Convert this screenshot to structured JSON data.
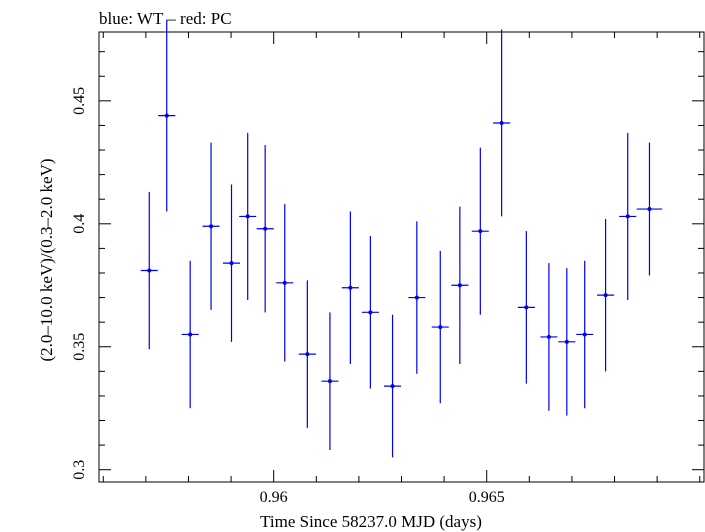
{
  "chart_data": {
    "type": "scatter",
    "title": "blue: WT – red: PC",
    "xlabel": "Time Since 58237.0 MJD (days)",
    "ylabel": "(2.0–10.0 keV)/(0.3–2.0 keV)",
    "xlim": [
      0.9559,
      0.9701
    ],
    "ylim": [
      0.295,
      0.478
    ],
    "x_ticks": [
      {
        "value": 0.96,
        "label": "0.96"
      },
      {
        "value": 0.965,
        "label": "0.965"
      }
    ],
    "y_ticks": [
      {
        "value": 0.3,
        "label": "0.3"
      },
      {
        "value": 0.35,
        "label": "0.35"
      },
      {
        "value": 0.4,
        "label": "0.4"
      },
      {
        "value": 0.45,
        "label": "0.45"
      }
    ],
    "grid": false,
    "series": [
      {
        "color": "#0000ee",
        "points": [
          {
            "x": 0.95708,
            "xerr": 0.0002,
            "y": 0.381,
            "yerr": 0.032
          },
          {
            "x": 0.95749,
            "xerr": 0.0002,
            "y": 0.444,
            "yerr": 0.039
          },
          {
            "x": 0.95804,
            "xerr": 0.0002,
            "y": 0.355,
            "yerr": 0.03
          },
          {
            "x": 0.95853,
            "xerr": 0.0002,
            "y": 0.399,
            "yerr": 0.034
          },
          {
            "x": 0.95901,
            "xerr": 0.0002,
            "y": 0.384,
            "yerr": 0.032
          },
          {
            "x": 0.95939,
            "xerr": 0.0002,
            "y": 0.403,
            "yerr": 0.034
          },
          {
            "x": 0.9598,
            "xerr": 0.0002,
            "y": 0.398,
            "yerr": 0.034
          },
          {
            "x": 0.96026,
            "xerr": 0.0002,
            "y": 0.376,
            "yerr": 0.032
          },
          {
            "x": 0.96079,
            "xerr": 0.0002,
            "y": 0.347,
            "yerr": 0.03
          },
          {
            "x": 0.96132,
            "xerr": 0.0002,
            "y": 0.336,
            "yerr": 0.028
          },
          {
            "x": 0.9618,
            "xerr": 0.0002,
            "y": 0.374,
            "yerr": 0.031
          },
          {
            "x": 0.96227,
            "xerr": 0.0002,
            "y": 0.364,
            "yerr": 0.031
          },
          {
            "x": 0.96279,
            "xerr": 0.0002,
            "y": 0.334,
            "yerr": 0.029
          },
          {
            "x": 0.96336,
            "xerr": 0.0002,
            "y": 0.37,
            "yerr": 0.031
          },
          {
            "x": 0.96391,
            "xerr": 0.0002,
            "y": 0.358,
            "yerr": 0.031
          },
          {
            "x": 0.96437,
            "xerr": 0.0002,
            "y": 0.375,
            "yerr": 0.032
          },
          {
            "x": 0.96485,
            "xerr": 0.0002,
            "y": 0.397,
            "yerr": 0.034
          },
          {
            "x": 0.96535,
            "xerr": 0.0002,
            "y": 0.441,
            "yerr": 0.038
          },
          {
            "x": 0.96593,
            "xerr": 0.0002,
            "y": 0.366,
            "yerr": 0.031
          },
          {
            "x": 0.96646,
            "xerr": 0.0002,
            "y": 0.354,
            "yerr": 0.03
          },
          {
            "x": 0.96688,
            "xerr": 0.0002,
            "y": 0.352,
            "yerr": 0.03
          },
          {
            "x": 0.9673,
            "xerr": 0.0002,
            "y": 0.355,
            "yerr": 0.03
          },
          {
            "x": 0.96779,
            "xerr": 0.0002,
            "y": 0.371,
            "yerr": 0.031
          },
          {
            "x": 0.96831,
            "xerr": 0.0002,
            "y": 0.403,
            "yerr": 0.034
          },
          {
            "x": 0.96882,
            "xerr": 0.0003,
            "y": 0.406,
            "yerr": 0.027
          }
        ]
      }
    ]
  }
}
